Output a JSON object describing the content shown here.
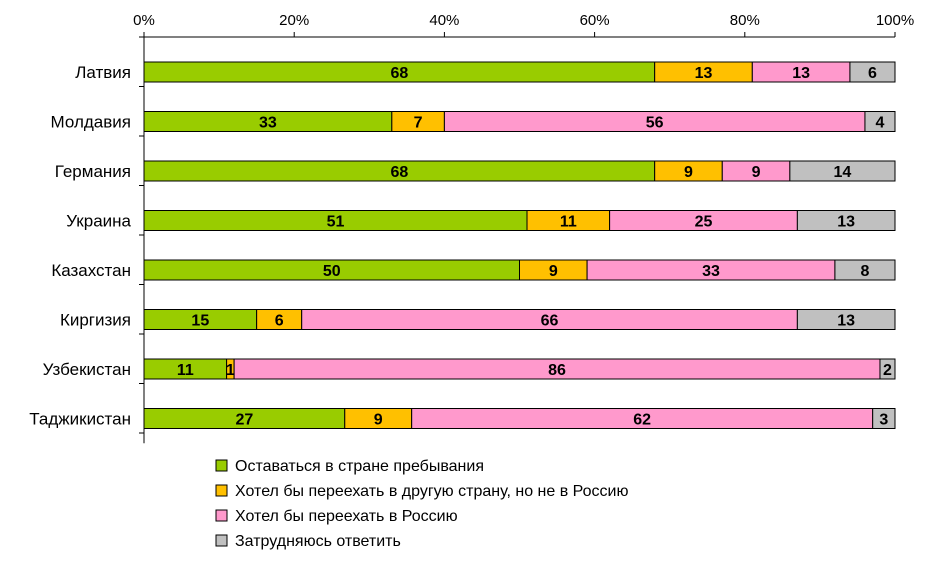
{
  "chart_data": {
    "type": "bar",
    "orientation": "horizontal",
    "stacked": "percent",
    "title": "",
    "xlim": [
      0,
      100
    ],
    "x_ticks": [
      "0%",
      "20%",
      "40%",
      "60%",
      "80%",
      "100%"
    ],
    "categories": [
      "Латвия",
      "Молдавия",
      "Германия",
      "Украина",
      "Казахстан",
      "Киргизия",
      "Узбекистан",
      "Таджикистан"
    ],
    "series": [
      {
        "name": "Оставаться в стране пребывания",
        "color": "#99CC00",
        "values": [
          68,
          33,
          68,
          51,
          50,
          15,
          11,
          27
        ]
      },
      {
        "name": "Хотел бы переехать в другую страну, но не в Россию",
        "color": "#FFC000",
        "values": [
          13,
          7,
          9,
          11,
          9,
          6,
          1,
          9
        ]
      },
      {
        "name": "Хотел бы переехать в Россию",
        "color": "#FF99CC",
        "values": [
          13,
          56,
          9,
          25,
          33,
          66,
          86,
          62
        ]
      },
      {
        "name": "Затрудняюсь ответить",
        "color": "#C0C0C0",
        "values": [
          6,
          4,
          14,
          13,
          8,
          13,
          2,
          3
        ]
      }
    ],
    "legend_position": "bottom",
    "grid": false
  }
}
